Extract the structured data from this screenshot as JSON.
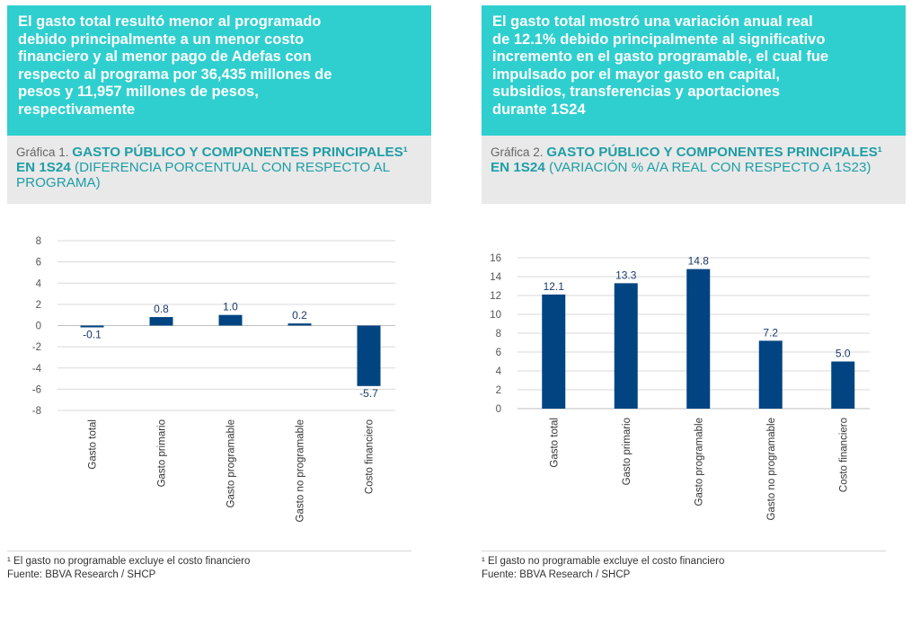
{
  "left": {
    "headline": "El gasto total resultó menor al programado\ndebido principalmente a un menor costo\nfinanciero y al menor pago de Adefas con\nrespecto al programa por 36,435 millones de\npesos y 11,957 millones de pesos,\nrespectivamente",
    "chart_label": "Gráfica 1. ",
    "chart_title_bold": "GASTO PÚBLICO Y COMPONENTES PRINCIPALES¹ EN 1S24",
    "chart_title_paren": " (DIFERENCIA PORCENTUAL CON RESPECTO AL PROGRAMA)",
    "footnote": "¹ El gasto no programable excluye el costo financiero",
    "source": "Fuente: BBVA Research / SHCP"
  },
  "right": {
    "headline": "El gasto total mostró una variación anual real\nde 12.1% debido principalmente al significativo\nincremento en el gasto programable, el cual fue\nimpulsado por el mayor gasto en capital,\nsubsidios, transferencias y aportaciones\ndurante 1S24",
    "chart_label": "Gráfica 2. ",
    "chart_title_bold": "GASTO PÚBLICO Y COMPONENTES PRINCIPALES¹ EN 1S24",
    "chart_title_paren": " (VARIACIÓN % A/A REAL CON RESPECTO A 1S23)",
    "footnote": "¹ El gasto no programable excluye el costo financiero",
    "source": "Fuente: BBVA Research / SHCP"
  },
  "colors": {
    "banner": "#2fcfcf",
    "bar": "#004481",
    "title_accent": "#1e9ea6"
  },
  "chart_data": [
    {
      "type": "bar",
      "title": "GASTO PÚBLICO Y COMPONENTES PRINCIPALES¹ EN 1S24 (DIFERENCIA PORCENTUAL CON RESPECTO AL PROGRAMA)",
      "categories": [
        "Gasto total",
        "Gasto primario",
        "Gasto programable",
        "Gasto no programable",
        "Costo financiero"
      ],
      "values": [
        -0.1,
        0.8,
        1.0,
        0.2,
        -5.7
      ],
      "data_labels": [
        "-0.1",
        "0.8",
        "1.0",
        "0.2",
        "-5.7"
      ],
      "yticks": [
        "8",
        "6",
        "4",
        "2",
        "0",
        "-2",
        "-4",
        "-6",
        "-8"
      ],
      "ylim": [
        -8,
        8
      ],
      "grid": true
    },
    {
      "type": "bar",
      "title": "GASTO PÚBLICO Y COMPONENTES PRINCIPALES¹ EN 1S24 (VARIACIÓN % A/A REAL CON RESPECTO A 1S23)",
      "categories": [
        "Gasto total",
        "Gasto primario",
        "Gasto programable",
        "Gasto no programable",
        "Costo financiero"
      ],
      "values": [
        12.1,
        13.3,
        14.8,
        7.2,
        5.0
      ],
      "data_labels": [
        "12.1",
        "13.3",
        "14.8",
        "7.2",
        "5.0"
      ],
      "yticks": [
        "16",
        "14",
        "12",
        "10",
        "8",
        "6",
        "4",
        "2",
        "0"
      ],
      "ylim": [
        0,
        16
      ],
      "grid": true
    }
  ]
}
